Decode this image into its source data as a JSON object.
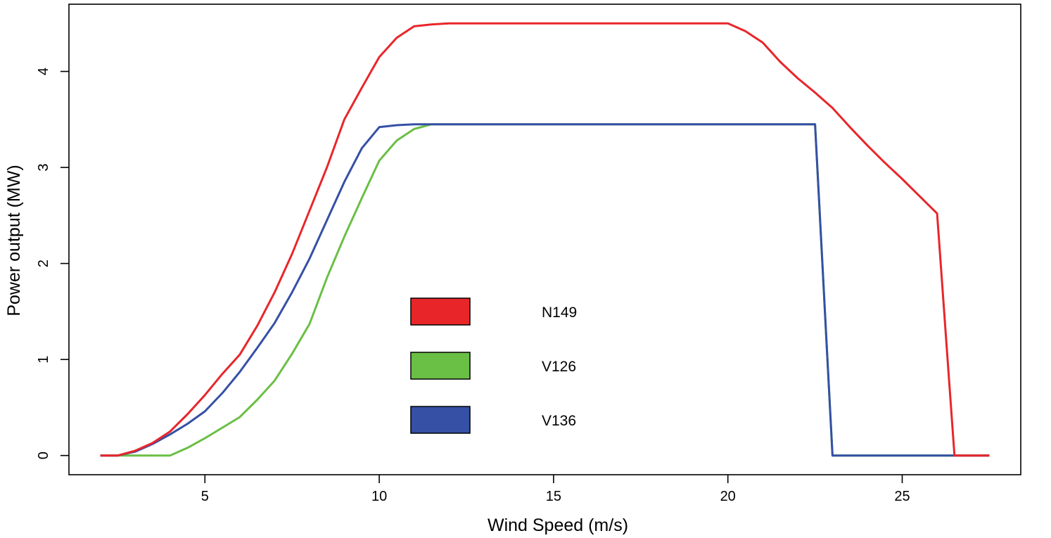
{
  "chart_data": {
    "type": "line",
    "title": "",
    "xlabel": "Wind Speed (m/s)",
    "ylabel": "Power output (MW)",
    "xlim": [
      1.1,
      28.4
    ],
    "ylim": [
      -0.2,
      4.7
    ],
    "xticks": [
      5,
      10,
      15,
      20,
      25
    ],
    "yticks": [
      0,
      1,
      2,
      3,
      4
    ],
    "legend_position": "center-left",
    "series": [
      {
        "name": "N149",
        "color": "#e8262a",
        "x": [
          2,
          2.5,
          3,
          3.5,
          4,
          4.5,
          5,
          5.5,
          6,
          6.5,
          7,
          7.5,
          8,
          8.5,
          9,
          9.5,
          10,
          10.5,
          11,
          11.5,
          12,
          12.5,
          13,
          14,
          15,
          16,
          17,
          18,
          19,
          20,
          20.5,
          21,
          21.5,
          22,
          22.5,
          23,
          23.5,
          24,
          24.5,
          25,
          25.5,
          26,
          26.5,
          27,
          27.5
        ],
        "y": [
          0,
          0,
          0.05,
          0.13,
          0.25,
          0.43,
          0.63,
          0.85,
          1.05,
          1.35,
          1.7,
          2.1,
          2.55,
          3.0,
          3.5,
          3.83,
          4.15,
          4.35,
          4.47,
          4.49,
          4.5,
          4.5,
          4.5,
          4.5,
          4.5,
          4.5,
          4.5,
          4.5,
          4.5,
          4.5,
          4.42,
          4.3,
          4.1,
          3.93,
          3.78,
          3.62,
          3.42,
          3.23,
          3.05,
          2.88,
          2.7,
          2.52,
          0,
          0,
          0
        ]
      },
      {
        "name": "V126",
        "color": "#6abf45",
        "x": [
          2,
          2.5,
          3,
          3.5,
          4,
          4.5,
          5,
          5.5,
          6,
          6.5,
          7,
          7.5,
          8,
          8.5,
          9,
          9.5,
          10,
          10.5,
          11,
          11.5,
          12,
          14,
          16,
          18,
          20,
          22,
          22.5,
          23,
          23.5,
          24,
          25,
          26,
          27,
          27.5
        ],
        "y": [
          0,
          0,
          0,
          0,
          0,
          0.08,
          0.18,
          0.29,
          0.4,
          0.58,
          0.78,
          1.06,
          1.37,
          1.85,
          2.28,
          2.68,
          3.07,
          3.28,
          3.4,
          3.45,
          3.45,
          3.45,
          3.45,
          3.45,
          3.45,
          3.45,
          3.45,
          0,
          0,
          0,
          0,
          0,
          0,
          0
        ]
      },
      {
        "name": "V136",
        "color": "#3550a5",
        "x": [
          2,
          2.5,
          3,
          3.5,
          4,
          4.5,
          5,
          5.5,
          6,
          6.5,
          7,
          7.5,
          8,
          8.5,
          9,
          9.5,
          10,
          10.5,
          11,
          11.5,
          12,
          14,
          16,
          18,
          20,
          22,
          22.5,
          23,
          23.5,
          24,
          25,
          26,
          27,
          27.5
        ],
        "y": [
          0,
          0,
          0.04,
          0.12,
          0.22,
          0.33,
          0.46,
          0.65,
          0.87,
          1.12,
          1.38,
          1.7,
          2.05,
          2.45,
          2.85,
          3.2,
          3.42,
          3.44,
          3.45,
          3.45,
          3.45,
          3.45,
          3.45,
          3.45,
          3.45,
          3.45,
          3.45,
          0,
          0,
          0,
          0,
          0,
          0,
          0
        ]
      }
    ]
  }
}
